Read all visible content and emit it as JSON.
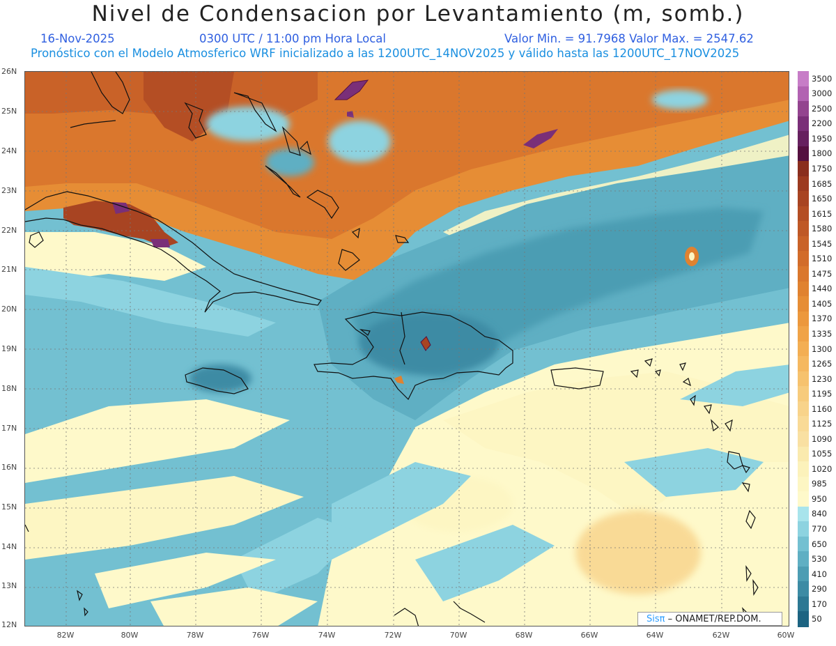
{
  "title": "Nivel de Condensacion por Levantamiento (m, somb.)",
  "date": "16-Nov-2025",
  "time": "0300 UTC / 11:00 pm Hora Local",
  "minmax": "Valor Min. = 91.7968  Valor Max. = 2547.62",
  "forecast": "Pronóstico con el Modelo Atmosferico WRF inicializado a las 1200UTC_14NOV2025 y válido hasta las  1200UTC_17NOV2025",
  "credit_logo": "Sisπ",
  "credit_text": "– ONAMET/REP.DOM.",
  "lat_labels": [
    "26N",
    "25N",
    "24N",
    "23N",
    "22N",
    "21N",
    "20N",
    "19N",
    "18N",
    "17N",
    "16N",
    "15N",
    "14N",
    "13N",
    "12N"
  ],
  "lon_labels": [
    "82W",
    "80W",
    "78W",
    "76W",
    "74W",
    "72W",
    "70W",
    "68W",
    "66W",
    "64W",
    "62W",
    "60W"
  ],
  "colorbar": {
    "labels": [
      "3500",
      "3000",
      "2500",
      "2200",
      "1950",
      "1800",
      "1750",
      "1685",
      "1650",
      "1615",
      "1580",
      "1545",
      "1510",
      "1475",
      "1440",
      "1405",
      "1370",
      "1335",
      "1300",
      "1265",
      "1230",
      "1195",
      "1160",
      "1125",
      "1090",
      "1055",
      "1020",
      "985",
      "950",
      "840",
      "770",
      "650",
      "530",
      "410",
      "290",
      "170",
      "50"
    ],
    "colors": [
      "#c77dc7",
      "#b262b2",
      "#93448f",
      "#7a2f78",
      "#66205f",
      "#551040",
      "#8a2e1e",
      "#9c3a20",
      "#a84422",
      "#b44e24",
      "#bf5826",
      "#c96228",
      "#d26c2a",
      "#da772d",
      "#e08230",
      "#e68d35",
      "#ec983d",
      "#f0a347",
      "#f3ae53",
      "#f5b860",
      "#f6c26e",
      "#f7cb7c",
      "#f8d38a",
      "#f9da96",
      "#f9e0a2",
      "#faeaae",
      "#fcf2bb",
      "#fdf6c3",
      "#fef9ca",
      "#a8e4ec",
      "#8dd3e0",
      "#73c0d1",
      "#5fafc3",
      "#4c9db3",
      "#3c8ba4",
      "#2c7893",
      "#1c6482"
    ]
  }
}
